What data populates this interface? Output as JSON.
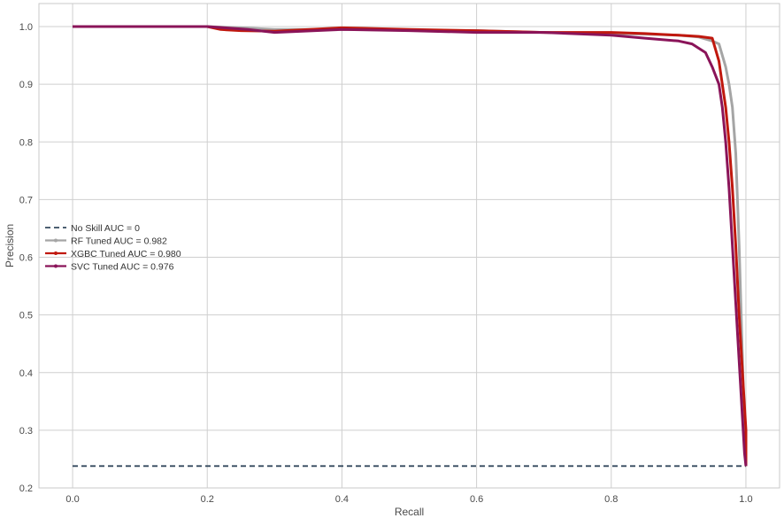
{
  "chart_data": {
    "type": "line",
    "title": "",
    "xlabel": "Recall",
    "ylabel": "Precision",
    "xlim": [
      -0.05,
      1.05
    ],
    "ylim": [
      0.2,
      1.04
    ],
    "x_ticks": [
      0.0,
      0.2,
      0.4,
      0.6,
      0.8,
      1.0
    ],
    "x_tick_labels": [
      "0.0",
      "0.2",
      "0.4",
      "0.6",
      "0.8",
      "1.0"
    ],
    "y_ticks": [
      0.2,
      0.3,
      0.4,
      0.5,
      0.6,
      0.7,
      0.8,
      0.9,
      1.0
    ],
    "y_tick_labels": [
      "0.2",
      "0.3",
      "0.4",
      "0.5",
      "0.6",
      "0.7",
      "0.8",
      "0.9",
      "1.0"
    ],
    "grid": true,
    "legend_position": "center-left",
    "series": [
      {
        "name": "No Skill AUC = 0",
        "color": "#34495e",
        "style": "dashed",
        "x": [
          0.0,
          1.0
        ],
        "y": [
          0.238,
          0.238
        ]
      },
      {
        "name": "RF Tuned AUC = 0.982",
        "color": "#a5a5a5",
        "style": "solid-marker",
        "x": [
          0.0,
          0.1,
          0.2,
          0.25,
          0.3,
          0.4,
          0.5,
          0.6,
          0.7,
          0.8,
          0.85,
          0.9,
          0.93,
          0.95,
          0.96,
          0.965,
          0.97,
          0.975,
          0.98,
          0.985,
          0.99,
          0.993,
          0.996,
          0.998,
          1.0
        ],
        "y": [
          1.0,
          1.0,
          1.0,
          0.998,
          0.995,
          0.995,
          0.994,
          0.993,
          0.99,
          0.988,
          0.987,
          0.985,
          0.982,
          0.975,
          0.97,
          0.95,
          0.93,
          0.9,
          0.86,
          0.78,
          0.62,
          0.5,
          0.38,
          0.3,
          0.238
        ]
      },
      {
        "name": "XGBC Tuned AUC = 0.980",
        "color": "#c0180e",
        "style": "solid-marker",
        "x": [
          0.0,
          0.1,
          0.2,
          0.22,
          0.25,
          0.3,
          0.4,
          0.5,
          0.6,
          0.7,
          0.8,
          0.85,
          0.9,
          0.93,
          0.95,
          0.955,
          0.96,
          0.965,
          0.97,
          0.975,
          0.98,
          0.985,
          0.99,
          0.995,
          1.0,
          1.0
        ],
        "y": [
          1.0,
          1.0,
          1.0,
          0.995,
          0.993,
          0.992,
          0.998,
          0.995,
          0.993,
          0.99,
          0.99,
          0.988,
          0.985,
          0.983,
          0.98,
          0.96,
          0.94,
          0.9,
          0.86,
          0.8,
          0.72,
          0.62,
          0.5,
          0.4,
          0.3,
          0.238
        ]
      },
      {
        "name": "SVC Tuned AUC = 0.976",
        "color": "#8a1459",
        "style": "solid-marker",
        "x": [
          0.0,
          0.1,
          0.2,
          0.26,
          0.3,
          0.4,
          0.5,
          0.6,
          0.7,
          0.8,
          0.85,
          0.9,
          0.92,
          0.94,
          0.95,
          0.96,
          0.965,
          0.97,
          0.975,
          0.98,
          0.985,
          0.99,
          0.995,
          0.998,
          1.0
        ],
        "y": [
          1.0,
          1.0,
          1.0,
          0.995,
          0.99,
          0.995,
          0.993,
          0.99,
          0.99,
          0.985,
          0.98,
          0.975,
          0.97,
          0.955,
          0.93,
          0.9,
          0.86,
          0.8,
          0.72,
          0.62,
          0.52,
          0.42,
          0.32,
          0.26,
          0.238
        ]
      }
    ]
  }
}
